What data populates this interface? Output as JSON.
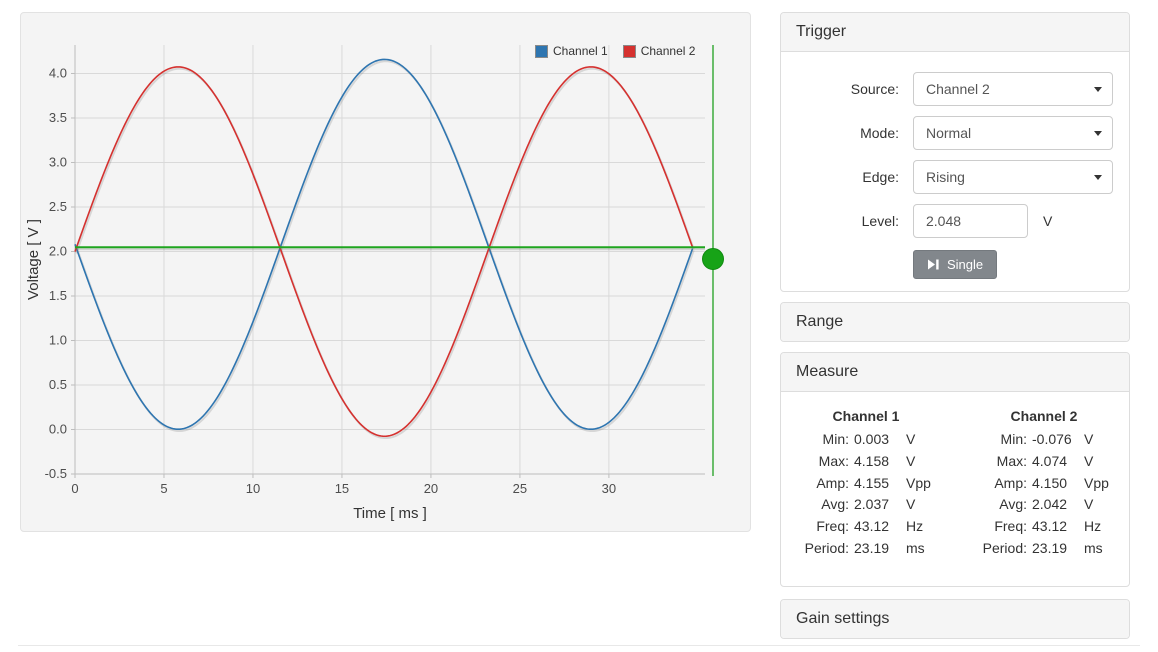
{
  "chart_data": {
    "type": "line",
    "title": "",
    "xlabel": "Time [ ms ]",
    "ylabel": "Voltage [ V ]",
    "xlim": [
      0,
      35.4
    ],
    "ylim": [
      -0.5,
      4.32
    ],
    "x_ticks": [
      0,
      5,
      10,
      15,
      20,
      25,
      30
    ],
    "y_ticks": [
      -0.5,
      0.0,
      0.5,
      1.0,
      1.5,
      2.0,
      2.5,
      3.0,
      3.5,
      4.0
    ],
    "grid": true,
    "legend_position": "top-right",
    "series": [
      {
        "name": "Channel 1",
        "color": "#2e75b0",
        "waveform": "sine",
        "mean": 2.0805,
        "amplitude": 2.0775,
        "period_ms": 23.19,
        "phase_deg": 180,
        "t_start": 0,
        "t_end": 34.785,
        "min": 0.003,
        "max": 4.158
      },
      {
        "name": "Channel 2",
        "color": "#d5312f",
        "waveform": "sine",
        "mean": 1.999,
        "amplitude": 2.075,
        "period_ms": 23.19,
        "phase_deg": 0,
        "t_start": 0,
        "t_end": 34.785,
        "min": -0.076,
        "max": 4.074
      }
    ],
    "trigger_level_line": {
      "value": 2.048,
      "color": "#1fa51f"
    },
    "trigger_axis": {
      "line_color": "#5cb85c",
      "handle_color": "#17a317"
    }
  },
  "trigger": {
    "title": "Trigger",
    "source_label": "Source:",
    "source_value": "Channel 2",
    "mode_label": "Mode:",
    "mode_value": "Normal",
    "edge_label": "Edge:",
    "edge_value": "Rising",
    "level_label": "Level:",
    "level_value": "2.048",
    "level_unit": "V",
    "single_button": "Single"
  },
  "range": {
    "title": "Range"
  },
  "measure": {
    "title": "Measure",
    "columns": [
      {
        "name": "Channel 1",
        "rows": [
          {
            "label": "Min:",
            "value": "0.003",
            "unit": "V"
          },
          {
            "label": "Max:",
            "value": "4.158",
            "unit": "V"
          },
          {
            "label": "Amp:",
            "value": "4.155",
            "unit": "Vpp"
          },
          {
            "label": "Avg:",
            "value": "2.037",
            "unit": "V"
          },
          {
            "label": "Freq:",
            "value": "43.12",
            "unit": "Hz"
          },
          {
            "label": "Period:",
            "value": "23.19",
            "unit": "ms"
          }
        ]
      },
      {
        "name": "Channel 2",
        "rows": [
          {
            "label": "Min:",
            "value": "-0.076",
            "unit": "V"
          },
          {
            "label": "Max:",
            "value": "4.074",
            "unit": "V"
          },
          {
            "label": "Amp:",
            "value": "4.150",
            "unit": "Vpp"
          },
          {
            "label": "Avg:",
            "value": "2.042",
            "unit": "V"
          },
          {
            "label": "Freq:",
            "value": "43.12",
            "unit": "Hz"
          },
          {
            "label": "Period:",
            "value": "23.19",
            "unit": "ms"
          }
        ]
      }
    ]
  },
  "gain": {
    "title": "Gain settings"
  }
}
